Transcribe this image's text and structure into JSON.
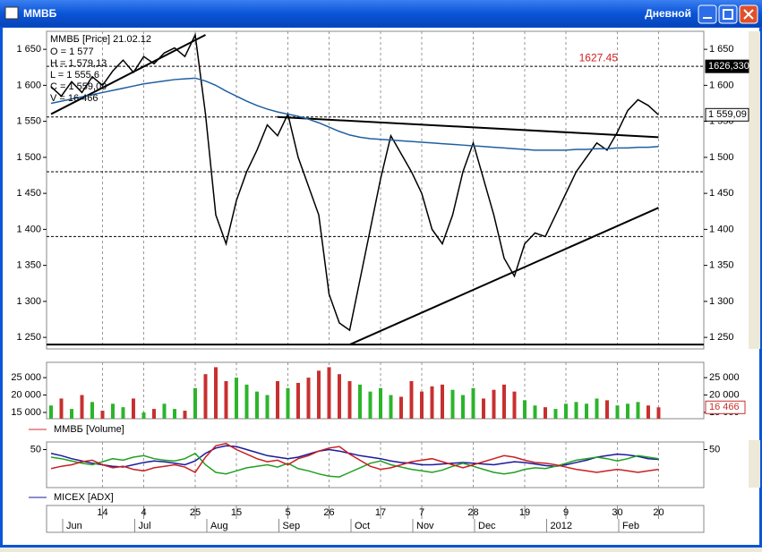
{
  "window": {
    "title": "ММВБ",
    "period": "Дневной"
  },
  "x_axis": {
    "days": [
      null,
      null,
      null,
      null,
      null,
      "14",
      null,
      null,
      null,
      "4",
      null,
      null,
      null,
      null,
      "25",
      null,
      null,
      null,
      "15",
      null,
      null,
      null,
      null,
      "5",
      null,
      null,
      null,
      "26",
      null,
      null,
      null,
      null,
      "17",
      null,
      null,
      null,
      "7",
      null,
      null,
      null,
      null,
      "28",
      null,
      null,
      null,
      null,
      "19",
      null,
      null,
      null,
      "9",
      null,
      null,
      null,
      null,
      "30",
      null,
      null,
      null,
      "20"
    ],
    "months": [
      null,
      null,
      "Jun",
      null,
      null,
      null,
      null,
      null,
      null,
      "Jul",
      null,
      null,
      null,
      null,
      null,
      null,
      "Aug",
      null,
      null,
      null,
      null,
      null,
      null,
      "Sep",
      null,
      null,
      null,
      null,
      null,
      null,
      "Oct",
      null,
      null,
      null,
      null,
      null,
      "Nov",
      null,
      null,
      null,
      null,
      null,
      "Dec",
      null,
      null,
      null,
      null,
      null,
      null,
      "2012",
      null,
      null,
      null,
      null,
      null,
      null,
      "Feb",
      null,
      null,
      null
    ]
  },
  "chart_data": [
    {
      "type": "line",
      "legend_title": "ММВБ [Price] 21.02.12",
      "legend_lines": [
        "O = 1 577",
        "H = 1 579,13",
        "L = 1 555,6",
        "C = 1 559,09",
        "V = 16 466"
      ],
      "ylim": [
        1234,
        1675
      ],
      "yticks": [
        {
          "value": 1650,
          "label": "1 650"
        },
        {
          "value": 1600,
          "label": "1 600"
        },
        {
          "value": 1550,
          "label": "1 550"
        },
        {
          "value": 1500,
          "label": "1 500"
        },
        {
          "value": 1450,
          "label": "1 450"
        },
        {
          "value": 1400,
          "label": "1 400"
        },
        {
          "value": 1350,
          "label": "1 350"
        },
        {
          "value": 1300,
          "label": "1 300"
        },
        {
          "value": 1250,
          "label": "1 250"
        }
      ],
      "series": [
        {
          "color": "#000000",
          "values": [
            1598,
            1585,
            1605,
            1590,
            1612,
            1600,
            1620,
            1635,
            1618,
            1640,
            1630,
            1645,
            1652,
            1640,
            1670,
            1560,
            1420,
            1380,
            1440,
            1480,
            1510,
            1545,
            1530,
            1560,
            1500,
            1460,
            1420,
            1310,
            1270,
            1260,
            1330,
            1400,
            1470,
            1530,
            1505,
            1480,
            1450,
            1400,
            1380,
            1420,
            1480,
            1520,
            1470,
            1420,
            1360,
            1335,
            1380,
            1395,
            1390,
            1420,
            1450,
            1480,
            1500,
            1520,
            1510,
            1535,
            1565,
            1580,
            1572,
            1559
          ]
        },
        {
          "color": "#1f5fa0",
          "values": [
            1575,
            1578,
            1581,
            1584,
            1587,
            1590,
            1593,
            1596,
            1599,
            1602,
            1604,
            1606,
            1608,
            1609,
            1610,
            1606,
            1600,
            1592,
            1585,
            1578,
            1572,
            1567,
            1563,
            1560,
            1557,
            1553,
            1548,
            1542,
            1536,
            1531,
            1528,
            1526,
            1525,
            1524,
            1523,
            1522,
            1521,
            1520,
            1519,
            1518,
            1517,
            1516,
            1515,
            1514,
            1513,
            1512,
            1511,
            1510,
            1510,
            1510,
            1510,
            1511,
            1511,
            1512,
            1512,
            1513,
            1513,
            1514,
            1514,
            1515
          ]
        }
      ],
      "levels": [
        {
          "value": 1626.33,
          "style": "dashed"
        },
        {
          "value": 1556,
          "style": "dashed"
        },
        {
          "value": 1480,
          "style": "dashed"
        },
        {
          "value": 1390,
          "style": "dashed"
        },
        {
          "value": 1240,
          "style": "solid"
        }
      ],
      "trendlines": [
        {
          "x": [
            29,
            59
          ],
          "y": [
            1240,
            1430
          ]
        },
        {
          "x": [
            22,
            59
          ],
          "y": [
            1556,
            1528
          ]
        },
        {
          "x": [
            0,
            15
          ],
          "y": [
            1560,
            1670
          ]
        }
      ],
      "price_labels": [
        {
          "value": 1627.45,
          "label": "1627.45",
          "color": "#d02020"
        },
        {
          "value": 1626.33,
          "label": "1626,330",
          "color": "#000000"
        },
        {
          "value": 1559.09,
          "label": "1 559,09",
          "color": "#000000"
        }
      ]
    },
    {
      "type": "bar",
      "legend": "ММВБ [Volume]",
      "ylim": [
        13200,
        29400
      ],
      "yticks": [
        {
          "value": 25000,
          "label": "25 000"
        },
        {
          "value": 20000,
          "label": "20 000"
        },
        {
          "value": 15000,
          "label": "15 000"
        }
      ],
      "up_color": "#2bb52b",
      "down_color": "#c83030",
      "values": [
        17000,
        19000,
        16000,
        20000,
        18000,
        15500,
        17500,
        16500,
        19000,
        15000,
        16000,
        17500,
        16000,
        15500,
        22000,
        26000,
        28000,
        24000,
        25000,
        23000,
        21000,
        20000,
        24000,
        22000,
        23500,
        25000,
        27000,
        28000,
        26000,
        24000,
        23000,
        21000,
        22000,
        20000,
        19500,
        24000,
        21000,
        22500,
        23000,
        21500,
        20000,
        22000,
        19000,
        21500,
        23000,
        21000,
        18500,
        17000,
        16500,
        16000,
        17500,
        18000,
        17500,
        19000,
        18500,
        17000,
        17500,
        18000,
        17000,
        16466
      ],
      "last_label": {
        "value": 16466,
        "label": "16 466"
      }
    },
    {
      "type": "line",
      "legend": "MICEX [ADX]",
      "ylim": [
        0,
        60
      ],
      "yticks": [
        50
      ],
      "series": [
        {
          "color": "#1a1a9c",
          "values": [
            45,
            42,
            38,
            35,
            32,
            30,
            28,
            27,
            30,
            33,
            35,
            34,
            32,
            30,
            35,
            45,
            52,
            55,
            54,
            50,
            46,
            42,
            40,
            38,
            40,
            44,
            48,
            50,
            48,
            45,
            42,
            40,
            38,
            35,
            33,
            32,
            30,
            30,
            31,
            32,
            33,
            32,
            31,
            30,
            32,
            34,
            33,
            31,
            29,
            28,
            30,
            33,
            36,
            40,
            42,
            44,
            43,
            41,
            38,
            37
          ]
        },
        {
          "color": "#20a020",
          "values": [
            40,
            38,
            35,
            32,
            30,
            34,
            38,
            36,
            40,
            42,
            38,
            36,
            35,
            38,
            45,
            30,
            20,
            18,
            22,
            26,
            28,
            30,
            27,
            32,
            25,
            22,
            18,
            15,
            14,
            20,
            26,
            32,
            35,
            30,
            27,
            24,
            22,
            20,
            23,
            28,
            32,
            28,
            24,
            20,
            18,
            20,
            24,
            26,
            25,
            28,
            32,
            36,
            38,
            40,
            38,
            35,
            38,
            42,
            40,
            38
          ]
        },
        {
          "color": "#c82020",
          "values": [
            25,
            28,
            30,
            34,
            36,
            30,
            26,
            28,
            24,
            22,
            26,
            28,
            30,
            27,
            20,
            40,
            55,
            58,
            50,
            44,
            38,
            34,
            36,
            30,
            38,
            42,
            48,
            52,
            54,
            44,
            36,
            28,
            24,
            26,
            30,
            34,
            36,
            38,
            34,
            30,
            26,
            30,
            34,
            38,
            42,
            40,
            36,
            33,
            32,
            30,
            27,
            24,
            22,
            20,
            22,
            24,
            22,
            20,
            22,
            24
          ]
        }
      ]
    }
  ]
}
